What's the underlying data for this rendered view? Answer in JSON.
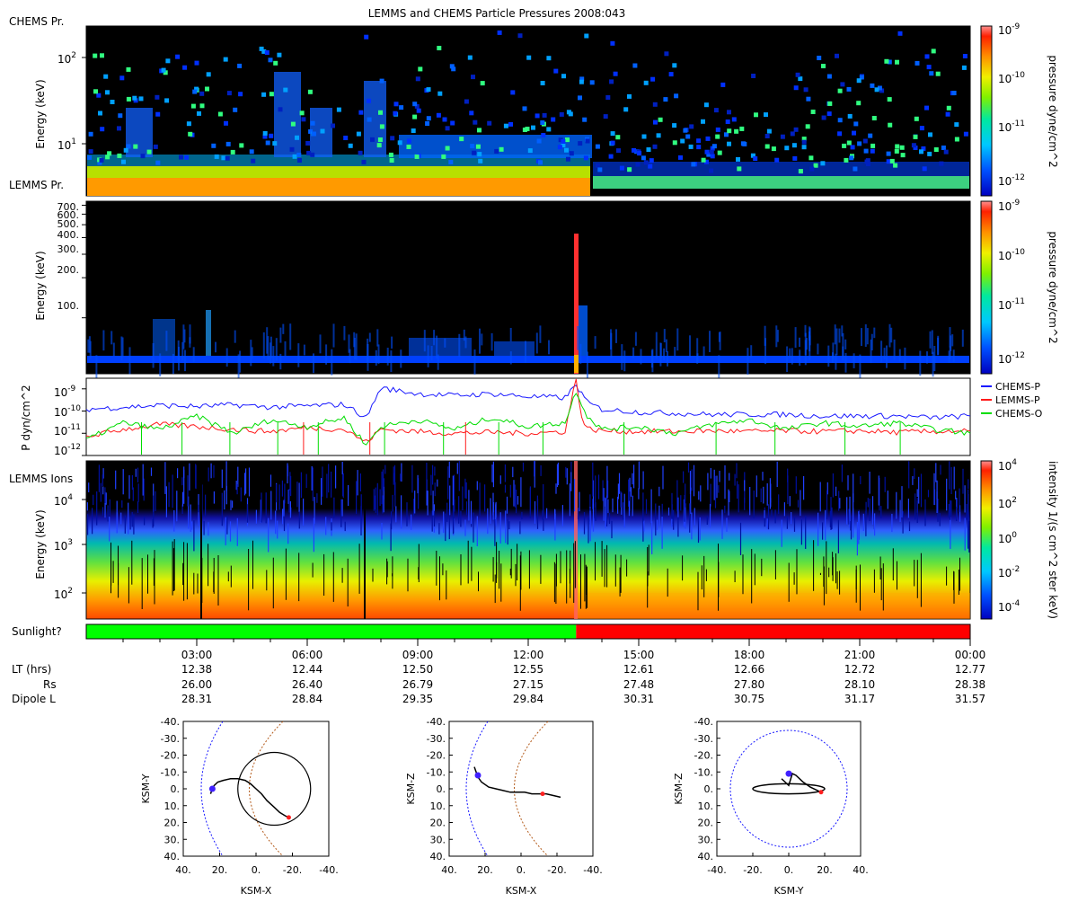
{
  "title": "LEMMS and CHEMS Particle Pressures  2008:043",
  "colors": {
    "black": "#000000",
    "chems_p": "#1a1aff",
    "lemms_p": "#ff1a1a",
    "chems_o": "#00dd00",
    "sun_on": "#00ff00",
    "sun_off": "#ff0000",
    "dipole": "#1a1aff",
    "magnetopause": "#b35a1a"
  },
  "chart_data": [
    {
      "id": "chems-spectrogram",
      "type": "heatmap",
      "panel_label": "CHEMS Pr.",
      "lower_label": "LEMMS Pr.",
      "ylabel": "Energy (keV)",
      "yscale": "log",
      "ylim": [
        3,
        250
      ],
      "yticks": [
        {
          "value": 10,
          "label": "10",
          "exp": "1"
        },
        {
          "value": 100,
          "label": "10",
          "exp": "2"
        }
      ],
      "colorbar": {
        "label": "pressure dyne/cm^2",
        "ticks": [
          {
            "label": "10",
            "exp": "-9"
          },
          {
            "label": "10",
            "exp": "-10"
          },
          {
            "label": "10",
            "exp": "-11"
          },
          {
            "label": "10",
            "exp": "-12"
          }
        ]
      }
    },
    {
      "id": "lemms-spectrogram",
      "type": "heatmap",
      "ylabel": "Energy (keV)",
      "yscale": "log",
      "ylim": [
        38,
        750
      ],
      "yticks": [
        {
          "value": 100,
          "label": "100."
        },
        {
          "value": 200,
          "label": "200."
        },
        {
          "value": 300,
          "label": "300."
        },
        {
          "value": 400,
          "label": "400."
        },
        {
          "value": 500,
          "label": "500."
        },
        {
          "value": 600,
          "label": "600."
        },
        {
          "value": 700,
          "label": "700."
        }
      ],
      "colorbar": {
        "label": "pressure dyne/cm^2",
        "ticks": [
          {
            "label": "10",
            "exp": "-9"
          },
          {
            "label": "10",
            "exp": "-10"
          },
          {
            "label": "10",
            "exp": "-11"
          },
          {
            "label": "10",
            "exp": "-12"
          }
        ]
      }
    },
    {
      "id": "pressure-timeseries",
      "type": "line",
      "ylabel": "P dyn/cm^2",
      "yscale": "log",
      "ylim": [
        1e-12,
        3e-09
      ],
      "yticks": [
        {
          "value": 1e-09,
          "label": "10",
          "exp": "-9"
        },
        {
          "value": 1e-10,
          "label": "10",
          "exp": "-10"
        },
        {
          "value": 1e-11,
          "label": "10",
          "exp": "-11"
        },
        {
          "value": 1e-12,
          "label": "10",
          "exp": "-12"
        }
      ],
      "xlim": [
        0,
        24
      ],
      "series": [
        {
          "name": "CHEMS-P",
          "color": "#1a1aff",
          "x": [
            0,
            1,
            2,
            3,
            4,
            5,
            6,
            7,
            7.6,
            8,
            9,
            10,
            11,
            12,
            13,
            13.3,
            13.6,
            14,
            15,
            16,
            17,
            18,
            19,
            20,
            21,
            22,
            23,
            24
          ],
          "y": [
            1.2e-10,
            1.5e-10,
            1.8e-10,
            1.6e-10,
            1.9e-10,
            1.5e-10,
            1.7e-10,
            2e-10,
            5e-11,
            1.1e-09,
            6e-10,
            5e-10,
            6e-10,
            4.5e-10,
            4e-10,
            1.5e-09,
            2.5e-10,
            1.2e-10,
            9e-11,
            8e-11,
            7e-11,
            7e-11,
            7e-11,
            6e-11,
            6e-11,
            6e-11,
            5e-11,
            6e-11
          ]
        },
        {
          "name": "LEMMS-P",
          "color": "#ff1a1a",
          "x": [
            0,
            1,
            2,
            3,
            4,
            5,
            6,
            7,
            7.6,
            8,
            9,
            10,
            11,
            12,
            13,
            13.3,
            13.45,
            13.6,
            14,
            15,
            16,
            17,
            18,
            19,
            20,
            21,
            22,
            23,
            24
          ],
          "y": [
            7e-12,
            1.5e-11,
            2.5e-11,
            2e-11,
            1.5e-11,
            1.2e-11,
            1.8e-11,
            1.5e-11,
            4e-12,
            1.5e-11,
            1.2e-11,
            1e-11,
            1.1e-11,
            1e-11,
            1.2e-11,
            3e-09,
            5e-11,
            1.6e-11,
            1.3e-11,
            1.2e-11,
            1.2e-11,
            1.3e-11,
            1.2e-11,
            1.3e-11,
            1.2e-11,
            1.3e-11,
            1.1e-11,
            1.2e-11,
            1.3e-11
          ]
        },
        {
          "name": "CHEMS-O",
          "color": "#00dd00",
          "x": [
            0,
            1,
            2,
            3,
            4,
            5,
            6,
            7,
            7.6,
            8,
            9,
            10,
            11,
            12,
            13,
            13.3,
            13.6,
            14,
            15,
            16,
            17,
            18,
            19,
            20,
            21,
            22,
            23,
            24
          ],
          "y": [
            5e-12,
            3e-11,
            1.5e-11,
            6e-11,
            1e-11,
            4e-11,
            2e-11,
            5e-11,
            3e-12,
            2e-11,
            4e-11,
            1.5e-11,
            5e-11,
            2e-11,
            3e-11,
            8e-10,
            6e-11,
            1.5e-11,
            2e-11,
            1e-11,
            2.5e-11,
            4e-11,
            1.5e-11,
            3e-11,
            2e-11,
            3e-11,
            1.5e-11,
            1e-11
          ]
        }
      ],
      "spikes": [
        {
          "series": "CHEMS-O",
          "x": [
            1.5,
            2.6,
            3.9,
            5.2,
            6.3,
            8.1,
            9.7,
            11.2,
            12.4,
            14.6,
            17.1,
            18.7,
            20.6,
            22.1
          ]
        },
        {
          "series": "LEMMS-P",
          "x": [
            5.9,
            7.7,
            10.3
          ]
        }
      ]
    },
    {
      "id": "lemms-ions",
      "type": "heatmap",
      "panel_label": "LEMMS Ions",
      "ylabel": "Energy (keV)",
      "yscale": "log",
      "ylim": [
        30,
        60000
      ],
      "yticks": [
        {
          "value": 100,
          "label": "10",
          "exp": "2"
        },
        {
          "value": 1000,
          "label": "10",
          "exp": "3"
        },
        {
          "value": 10000,
          "label": "10",
          "exp": "4"
        }
      ],
      "colorbar": {
        "label": "intensity 1/(s cm^2 ster keV)",
        "ticks": [
          {
            "label": "10",
            "exp": "4"
          },
          {
            "label": "10",
            "exp": "2"
          },
          {
            "label": "10",
            "exp": "0"
          },
          {
            "label": "10",
            "exp": "-2"
          },
          {
            "label": "10",
            "exp": "-4"
          }
        ]
      }
    },
    {
      "id": "sunlight-bar",
      "type": "bar",
      "label": "Sunlight?",
      "segments": [
        {
          "state": "sunlight",
          "start_hr": 0,
          "end_hr": 13.3
        },
        {
          "state": "shadow",
          "start_hr": 13.3,
          "end_hr": 24
        }
      ]
    },
    {
      "id": "orbit-xy",
      "type": "scatter",
      "xlabel": "KSM-X",
      "ylabel": "KSM-Y",
      "xlim": [
        40,
        -40
      ],
      "ylim": [
        -40,
        40
      ],
      "xticks": [
        "40.",
        "20.",
        "0.",
        "-20.",
        "-40."
      ],
      "yticks": [
        "-40.",
        "-30.",
        "-20.",
        "-10.",
        "0.",
        "10.",
        "20.",
        "30.",
        "40."
      ],
      "trajectory": [
        [
          25,
          3
        ],
        [
          24,
          0
        ],
        [
          23,
          -2
        ],
        [
          21,
          -4
        ],
        [
          18,
          -5
        ],
        [
          14,
          -6
        ],
        [
          10,
          -6
        ],
        [
          6,
          -5
        ],
        [
          3,
          -3
        ],
        [
          0,
          0
        ],
        [
          -3,
          3
        ],
        [
          -6,
          7
        ],
        [
          -10,
          11
        ],
        [
          -13,
          14
        ],
        [
          -16,
          16
        ],
        [
          -18,
          17
        ]
      ],
      "loop": {
        "center": [
          -10,
          0
        ],
        "radius": 20
      },
      "start_marker": [
        24,
        0
      ],
      "end_marker": [
        -18,
        17
      ]
    },
    {
      "id": "orbit-xz",
      "type": "scatter",
      "xlabel": "KSM-X",
      "ylabel": "KSM-Z",
      "xlim": [
        40,
        -40
      ],
      "ylim": [
        -40,
        40
      ],
      "xticks": [
        "40.",
        "20.",
        "0.",
        "-20.",
        "-40."
      ],
      "yticks": [
        "-40.",
        "-30.",
        "-20.",
        "-10.",
        "0.",
        "10.",
        "20.",
        "30.",
        "40."
      ],
      "trajectory": [
        [
          26,
          -13
        ],
        [
          25,
          -10
        ],
        [
          24,
          -7
        ],
        [
          22,
          -4
        ],
        [
          18,
          -1
        ],
        [
          14,
          0
        ],
        [
          10,
          1
        ],
        [
          6,
          2
        ],
        [
          2,
          2
        ],
        [
          -2,
          2
        ],
        [
          -6,
          3
        ],
        [
          -10,
          3
        ],
        [
          -14,
          3
        ],
        [
          -18,
          4
        ],
        [
          -22,
          5
        ]
      ],
      "start_marker": [
        24,
        -8
      ],
      "end_marker": [
        -12,
        3
      ]
    },
    {
      "id": "orbit-yz",
      "type": "scatter",
      "xlabel": "KSM-Y",
      "ylabel": "KSM-Z",
      "xlim": [
        -40,
        40
      ],
      "ylim": [
        -40,
        40
      ],
      "xticks": [
        "-40.",
        "-20.",
        "0.",
        "20.",
        "40."
      ],
      "yticks": [
        "-40.",
        "-30.",
        "-20.",
        "-10.",
        "0.",
        "10.",
        "20.",
        "30.",
        "40."
      ],
      "trajectory": [
        [
          -4,
          -6
        ],
        [
          -2,
          -4
        ],
        [
          0,
          -2
        ],
        [
          2,
          -9
        ],
        [
          4,
          -8
        ],
        [
          8,
          -4
        ],
        [
          12,
          -1
        ],
        [
          16,
          1
        ],
        [
          18,
          2
        ]
      ],
      "ellipse": {
        "center": [
          0,
          0
        ],
        "rx": 20,
        "ry": 3
      },
      "start_marker": [
        0,
        -9
      ],
      "end_marker": [
        18,
        2
      ]
    }
  ],
  "time_axis": {
    "ticks": [
      "03:00",
      "06:00",
      "09:00",
      "12:00",
      "15:00",
      "18:00",
      "21:00",
      "00:00"
    ],
    "rows": [
      {
        "label": "LT (hrs)",
        "values": [
          "12.38",
          "12.44",
          "12.50",
          "12.55",
          "12.61",
          "12.66",
          "12.72",
          "12.77"
        ]
      },
      {
        "label": "Rs",
        "values": [
          "26.00",
          "26.40",
          "26.79",
          "27.15",
          "27.48",
          "27.80",
          "28.10",
          "28.38"
        ]
      },
      {
        "label": "Dipole L",
        "values": [
          "28.31",
          "28.84",
          "29.35",
          "29.84",
          "30.31",
          "30.75",
          "31.17",
          "31.57"
        ]
      }
    ]
  }
}
